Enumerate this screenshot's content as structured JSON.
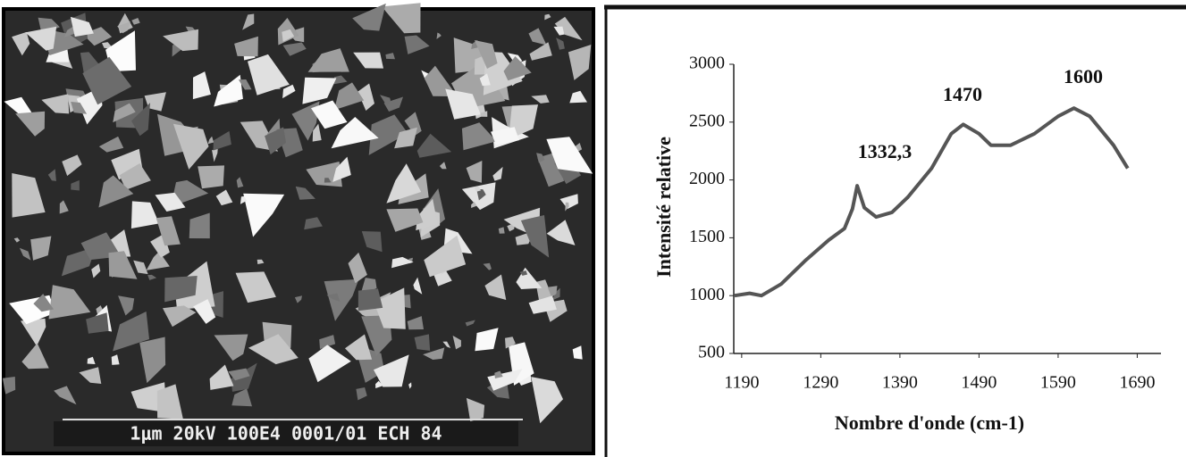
{
  "image_caption": "1μm 20kV 100E4 0001/01 ECH 84",
  "chart_data": {
    "type": "line",
    "ylabel": "Intensité relative",
    "xlabel": "Nombre d'onde (cm-1)",
    "annotations": [
      "1332,3",
      "1470",
      "1600"
    ],
    "x": [
      1181,
      1200,
      1215,
      1240,
      1270,
      1300,
      1320,
      1330,
      1336,
      1345,
      1360,
      1380,
      1400,
      1430,
      1455,
      1470,
      1490,
      1505,
      1530,
      1560,
      1590,
      1610,
      1630,
      1660,
      1678
    ],
    "values": [
      1000,
      1020,
      1000,
      1100,
      1300,
      1480,
      1580,
      1750,
      1950,
      1760,
      1680,
      1720,
      1850,
      2100,
      2400,
      2480,
      2400,
      2300,
      2300,
      2400,
      2550,
      2620,
      2550,
      2300,
      2100
    ],
    "color": "#555555",
    "xlim": [
      1180,
      1720
    ],
    "ylim": [
      500,
      3000
    ],
    "xticks": [
      1190,
      1290,
      1390,
      1490,
      1590,
      1690
    ],
    "yticks": [
      500,
      1000,
      1500,
      2000,
      2500,
      3000
    ]
  }
}
